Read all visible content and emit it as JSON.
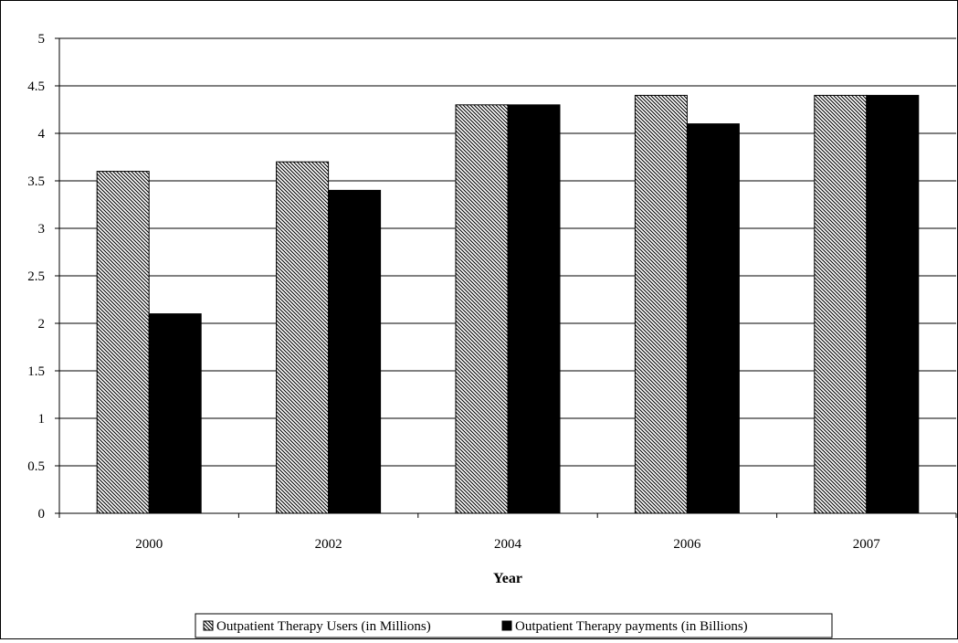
{
  "chart_data": {
    "type": "bar",
    "title": "",
    "xlabel": "Year",
    "ylabel": "",
    "categories": [
      "2000",
      "2002",
      "2004",
      "2006",
      "2007"
    ],
    "series": [
      {
        "name": "Outpatient Therapy Users (in Millions)",
        "values": [
          3.6,
          3.7,
          4.3,
          4.4,
          4.4
        ],
        "fill": "hatch"
      },
      {
        "name": "Outpatient Therapy payments (in Billions)",
        "values": [
          2.1,
          3.4,
          4.3,
          4.1,
          4.4
        ],
        "fill": "#000000"
      }
    ],
    "ylim": [
      0,
      5
    ],
    "yticks": [
      "0",
      "0.5",
      "1",
      "1.5",
      "2",
      "2.5",
      "3",
      "3.5",
      "4",
      "4.5",
      "5"
    ],
    "grid": true,
    "legend_position": "bottom"
  }
}
